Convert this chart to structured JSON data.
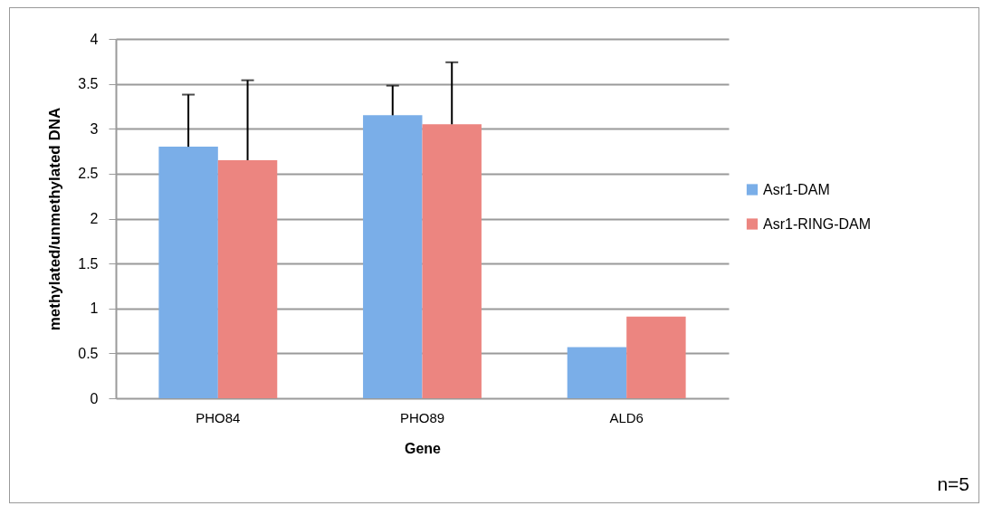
{
  "chart_data": {
    "type": "bar",
    "xlabel": "Gene",
    "ylabel": "methylated/unmethylated DNA",
    "categories": [
      "PHO84",
      "PHO89",
      "ALD6"
    ],
    "series": [
      {
        "name": "Asr1-DAM",
        "color": "#7aaee8",
        "values": [
          2.8,
          3.15,
          0.57
        ],
        "errors": [
          [
            2.8,
            3.38
          ],
          [
            3.15,
            3.48
          ],
          null
        ]
      },
      {
        "name": "Asr1-RING-DAM",
        "color": "#ec8580",
        "values": [
          2.65,
          3.05,
          0.91
        ],
        "errors": [
          [
            2.65,
            3.54
          ],
          [
            3.05,
            3.74
          ],
          null
        ]
      }
    ],
    "ylim": [
      0,
      4
    ],
    "yticks": [
      0,
      0.5,
      1,
      1.5,
      2,
      2.5,
      3,
      3.5,
      4
    ],
    "grid": "y",
    "legend": "right",
    "annotations": [
      "n=5"
    ]
  }
}
